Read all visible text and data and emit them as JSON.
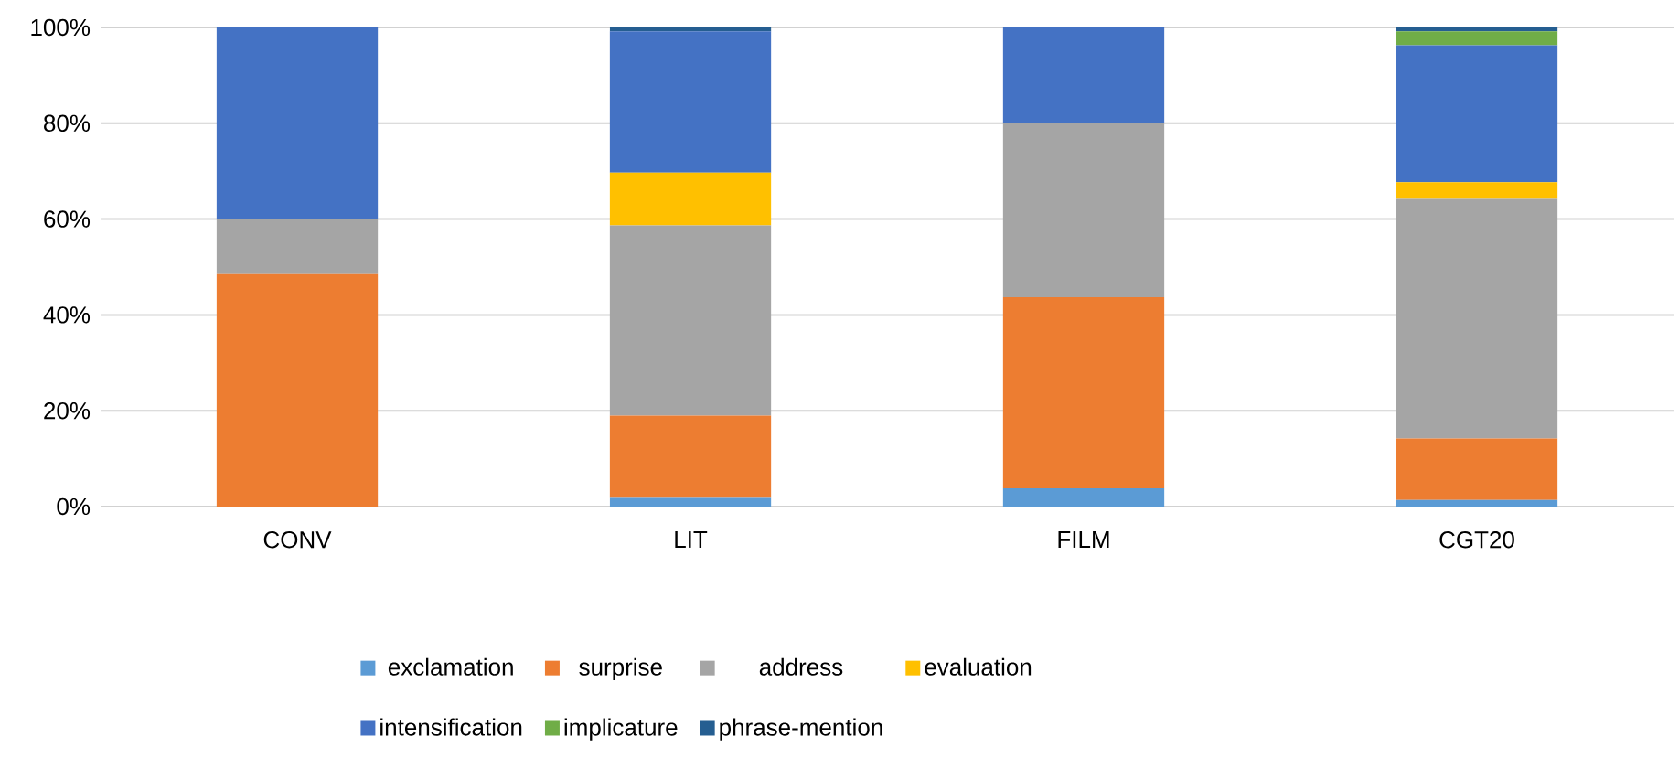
{
  "chart_data": {
    "type": "bar",
    "stacked": true,
    "categories": [
      "CONV",
      "LIT",
      "FILM",
      "CGT20"
    ],
    "series": [
      {
        "name": "exclamation",
        "color": "#5b9bd5",
        "values": [
          0,
          1.8,
          3.8,
          1.4
        ]
      },
      {
        "name": "surprise",
        "color": "#ed7d31",
        "values": [
          48.5,
          17.2,
          39.9,
          12.8
        ]
      },
      {
        "name": "address",
        "color": "#a5a5a5",
        "values": [
          11.4,
          39.7,
          36.3,
          50.0
        ]
      },
      {
        "name": "evaluation",
        "color": "#ffc000",
        "values": [
          0,
          11.0,
          0,
          3.5
        ]
      },
      {
        "name": "intensification",
        "color": "#4472c4",
        "values": [
          40.1,
          29.5,
          20.0,
          28.6
        ]
      },
      {
        "name": "implicature",
        "color": "#70ad47",
        "values": [
          0,
          0,
          0,
          2.9
        ]
      },
      {
        "name": "phrase-mention",
        "color": "#255e91",
        "values": [
          0,
          0.8,
          0,
          0.8
        ]
      }
    ],
    "ylim": [
      0,
      100
    ],
    "yticks": [
      {
        "value": 0,
        "label": "0%"
      },
      {
        "value": 20,
        "label": "20%"
      },
      {
        "value": 40,
        "label": "40%"
      },
      {
        "value": 60,
        "label": "60%"
      },
      {
        "value": 80,
        "label": "80%"
      },
      {
        "value": 100,
        "label": "100%"
      }
    ],
    "grid": "y",
    "legend": "bottom"
  }
}
